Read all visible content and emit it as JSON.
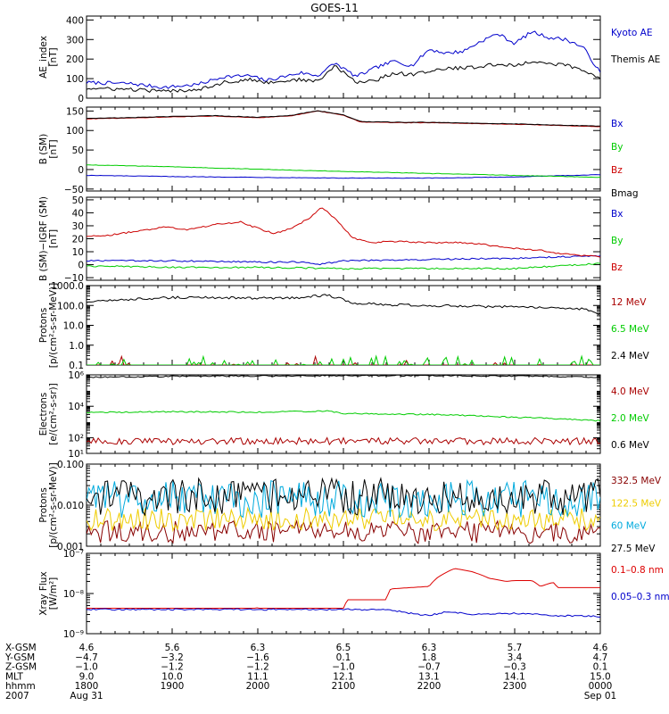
{
  "chart_data": {
    "type": "line",
    "title": "GOES-11",
    "x_start_hours": 18,
    "x_end_hours": 24,
    "panels": [
      {
        "id": "ae",
        "ylabel_lines": [
          "AE_index",
          "[nT]"
        ],
        "scale": "linear",
        "ylim": [
          0,
          420
        ],
        "ticks": [
          0,
          100,
          200,
          300,
          400
        ],
        "tick_labels": [
          "0",
          "100",
          "200",
          "300",
          "400"
        ],
        "series": [
          {
            "name": "Kyoto AE",
            "color": "#0000cc",
            "x": [
              18.0,
              18.5,
              18.9,
              19.3,
              19.6,
              19.9,
              20.1,
              20.5,
              20.7,
              20.9,
              21.15,
              21.4,
              21.6,
              21.8,
              22.0,
              22.2,
              22.4,
              22.6,
              22.8,
              23.0,
              23.2,
              23.4,
              23.6,
              23.8,
              24.0
            ],
            "y": [
              80,
              75,
              55,
              70,
              110,
              115,
              90,
              130,
              115,
              180,
              110,
              160,
              190,
              165,
              250,
              230,
              240,
              290,
              330,
              280,
              340,
              310,
              300,
              260,
              130
            ]
          },
          {
            "name": "Themis AE",
            "color": "#000000",
            "x": [
              18.0,
              18.5,
              18.9,
              19.3,
              19.6,
              19.9,
              20.1,
              20.5,
              20.7,
              20.9,
              21.15,
              21.4,
              21.6,
              21.8,
              22.0,
              22.2,
              22.4,
              22.6,
              22.8,
              23.0,
              23.2,
              23.4,
              23.6,
              23.8,
              24.0
            ],
            "y": [
              50,
              45,
              35,
              45,
              80,
              95,
              80,
              95,
              85,
              165,
              80,
              95,
              130,
              120,
              140,
              150,
              155,
              160,
              175,
              165,
              190,
              175,
              170,
              140,
              100
            ]
          }
        ]
      },
      {
        "id": "b_sm",
        "ylabel_lines": [
          "B (SM)",
          "[nT]"
        ],
        "scale": "linear",
        "ylim": [
          -55,
          160
        ],
        "ticks": [
          -50,
          0,
          50,
          100,
          150
        ],
        "tick_labels": [
          "−50",
          "0",
          "50",
          "100",
          "150"
        ],
        "series": [
          {
            "name": "Bx",
            "color": "#0000cc",
            "x": [
              18,
              19,
              20,
              21,
              22,
              23,
              24
            ],
            "y": [
              -15,
              -18,
              -20,
              -22,
              -22,
              -19,
              -13
            ]
          },
          {
            "name": "By",
            "color": "#00cc00",
            "x": [
              18,
              19,
              20,
              21,
              22,
              23,
              24
            ],
            "y": [
              12,
              7,
              1,
              -5,
              -10,
              -15,
              -20
            ]
          },
          {
            "name": "Bz",
            "color": "#cc0000",
            "x": [
              18,
              18.5,
              19,
              19.5,
              20,
              20.4,
              20.7,
              21.0,
              21.2,
              21.4,
              21.7,
              22,
              22.5,
              23,
              23.5,
              24
            ],
            "y": [
              130,
              132,
              135,
              137,
              133,
              138,
              150,
              139,
              122,
              121,
              120,
              120,
              118,
              116,
              113,
              110
            ]
          },
          {
            "name": "Bmag",
            "color": "#000000",
            "x": [
              18,
              18.5,
              19,
              19.5,
              20,
              20.4,
              20.7,
              21.0,
              21.2,
              21.4,
              21.7,
              22,
              22.5,
              23,
              23.5,
              24
            ],
            "y": [
              131,
              133,
              136,
              138,
              134,
              139,
              151,
              140,
              123,
              122,
              121,
              121,
              119,
              117,
              114,
              111
            ]
          }
        ]
      },
      {
        "id": "b_igrf",
        "ylabel_lines": [
          "B (SM)−IGRF (SM)",
          "[nT]"
        ],
        "scale": "linear",
        "ylim": [
          -12,
          52
        ],
        "ticks": [
          -10,
          0,
          10,
          20,
          30,
          40,
          50
        ],
        "tick_labels": [
          "−10",
          "0",
          "10",
          "20",
          "30",
          "40",
          "50"
        ],
        "series": [
          {
            "name": "Bx",
            "color": "#0000cc",
            "x": [
              18,
              19,
              20,
              20.5,
              20.7,
              21,
              22,
              23,
              24
            ],
            "y": [
              3,
              3,
              2,
              2,
              0,
              3,
              4,
              5,
              7
            ]
          },
          {
            "name": "By",
            "color": "#00cc00",
            "x": [
              18,
              19,
              20,
              21,
              22,
              23,
              24
            ],
            "y": [
              -1,
              -2,
              -2,
              -3,
              -3,
              -3,
              1
            ]
          },
          {
            "name": "Bz",
            "color": "#cc0000",
            "x": [
              18,
              18.3,
              18.6,
              18.9,
              19.2,
              19.5,
              19.8,
              20.0,
              20.2,
              20.4,
              20.6,
              20.75,
              20.9,
              21.1,
              21.3,
              21.6,
              22.0,
              22.3,
              22.6,
              22.9,
              23.3,
              23.6,
              24.0
            ],
            "y": [
              22,
              23,
              26,
              29,
              27,
              31,
              33,
              28,
              24,
              28,
              36,
              44,
              36,
              21,
              17,
              18,
              17,
              17,
              16,
              13,
              11,
              8,
              6
            ]
          }
        ]
      },
      {
        "id": "protons_low",
        "ylabel_lines": [
          "Protons",
          "[p/(cm²-s-sr-MeV)]"
        ],
        "scale": "log",
        "ylim": [
          0.1,
          1000
        ],
        "ticks": [
          0.1,
          1,
          10,
          100,
          1000
        ],
        "tick_labels": [
          "0.1",
          "1.0",
          "10.0",
          "100.0",
          "1000.0"
        ],
        "series": [
          {
            "name": "12 MeV",
            "color": "#aa0000",
            "x": [
              18,
              24
            ],
            "y": [
              0.1,
              0.1
            ]
          },
          {
            "name": "6.5 MeV",
            "color": "#00cc00",
            "x": [
              18,
              24
            ],
            "y": [
              0.1,
              0.1
            ]
          },
          {
            "name": "2.4 MeV",
            "color": "#000000",
            "x": [
              18,
              18.5,
              19,
              19.5,
              20,
              20.5,
              20.8,
              21.1,
              21.5,
              22,
              22.5,
              23,
              23.5,
              23.8,
              24
            ],
            "y": [
              150,
              200,
              250,
              250,
              230,
              250,
              330,
              130,
              110,
              100,
              90,
              85,
              80,
              65,
              35
            ]
          }
        ]
      },
      {
        "id": "electrons",
        "ylabel_lines": [
          "Electrons",
          "[e/(cm²-s-sr)]"
        ],
        "scale": "log",
        "ylim": [
          10,
          1000000
        ],
        "ticks": [
          10,
          100,
          10000,
          1000000
        ],
        "tick_labels": [
          "10¹",
          "10²",
          "10⁴",
          "10⁶"
        ],
        "series": [
          {
            "name": "4.0 MeV",
            "color": "#aa0000",
            "x": [
              18,
              24
            ],
            "y": [
              60,
              60
            ]
          },
          {
            "name": "2.0 MeV",
            "color": "#00cc00",
            "x": [
              18,
              19,
              20,
              20.8,
              21,
              22,
              23,
              24
            ],
            "y": [
              4000,
              4500,
              4200,
              5000,
              3500,
              3000,
              2000,
              1200
            ]
          },
          {
            "name": "0.6 MeV",
            "color": "#000000",
            "x": [
              18,
              19,
              20,
              21,
              22,
              23,
              24
            ],
            "y": [
              700000,
              800000,
              850000,
              900000,
              900000,
              850000,
              700000
            ]
          }
        ]
      },
      {
        "id": "protons_high",
        "ylabel_lines": [
          "Protons",
          "[p/(cm²-s-sr-MeV)]"
        ],
        "scale": "log",
        "ylim": [
          0.001,
          0.1
        ],
        "ticks": [
          0.001,
          0.01,
          0.1
        ],
        "tick_labels": [
          "0.001",
          "0.010",
          "0.100"
        ],
        "series": [
          {
            "name": "332.5 MeV",
            "color": "#880000",
            "x": [
              18,
              24
            ],
            "y": [
              0.0022,
              0.0022
            ]
          },
          {
            "name": "122.5 MeV",
            "color": "#eecc00",
            "x": [
              18,
              24
            ],
            "y": [
              0.0045,
              0.0045
            ]
          },
          {
            "name": "60 MeV",
            "color": "#00aadd",
            "x": [
              18,
              24
            ],
            "y": [
              0.014,
              0.014
            ]
          },
          {
            "name": "27.5 MeV",
            "color": "#000000",
            "x": [
              18,
              24
            ],
            "y": [
              0.016,
              0.016
            ]
          }
        ]
      },
      {
        "id": "xray",
        "ylabel_lines": [
          "Xray Flux",
          "[W/m²]"
        ],
        "scale": "log",
        "ylim": [
          1e-09,
          1e-07
        ],
        "ticks": [
          1e-09,
          1e-08,
          1e-07
        ],
        "tick_labels": [
          "10⁻⁹",
          "10⁻⁸",
          "10⁻⁷"
        ],
        "series": [
          {
            "name": "0.1–0.8 nm",
            "color": "#dd0000",
            "x": [
              18,
              19.5,
              19.99,
              20.0,
              20.01,
              21.0,
              21.05,
              21.5,
              21.55,
              22.0,
              22.1,
              22.3,
              22.5,
              22.7,
              22.9,
              23.0,
              23.2,
              23.3,
              23.45,
              23.5,
              24
            ],
            "y": [
              4.3e-09,
              4.3e-09,
              4.3e-09,
              5.5e-09,
              4.3e-09,
              4.3e-09,
              7e-09,
              7e-09,
              1.3e-08,
              1.5e-08,
              2.5e-08,
              4.2e-08,
              3.5e-08,
              2.4e-08,
              2e-08,
              2.1e-08,
              2.1e-08,
              1.5e-08,
              1.9e-08,
              1.4e-08,
              1.4e-08
            ]
          },
          {
            "name": "0.05–0.3 nm",
            "color": "#0000cc",
            "x": [
              18,
              19,
              20,
              21,
              21.5,
              21.8,
              22.0,
              22.2,
              22.5,
              23,
              23.5,
              24
            ],
            "y": [
              4e-09,
              4e-09,
              4e-09,
              4e-09,
              4e-09,
              3.2e-09,
              2.8e-09,
              3.5e-09,
              3e-09,
              3.2e-09,
              2.8e-09,
              2.7e-09
            ]
          }
        ]
      }
    ],
    "ephemeris": {
      "rows": [
        {
          "label": "X-GSM",
          "values": [
            "4.6",
            "5.6",
            "6.3",
            "6.5",
            "6.3",
            "5.7",
            "4.6"
          ]
        },
        {
          "label": "Y-GSM",
          "values": [
            "−4.7",
            "−3.2",
            "−1.6",
            "0.1",
            "1.8",
            "3.4",
            "4.7"
          ]
        },
        {
          "label": "Z-GSM",
          "values": [
            "−1.0",
            "−1.2",
            "−1.2",
            "−1.0",
            "−0.7",
            "−0.3",
            "0.1"
          ]
        },
        {
          "label": "MLT",
          "values": [
            "9.0",
            "10.0",
            "11.1",
            "12.1",
            "13.1",
            "14.1",
            "15.0"
          ]
        },
        {
          "label": "hhmm",
          "values": [
            "1800",
            "1900",
            "2000",
            "2100",
            "2200",
            "2300",
            "0000"
          ]
        }
      ],
      "date_label": "2007",
      "dates": [
        "Aug 31",
        "Sep 01"
      ]
    }
  }
}
